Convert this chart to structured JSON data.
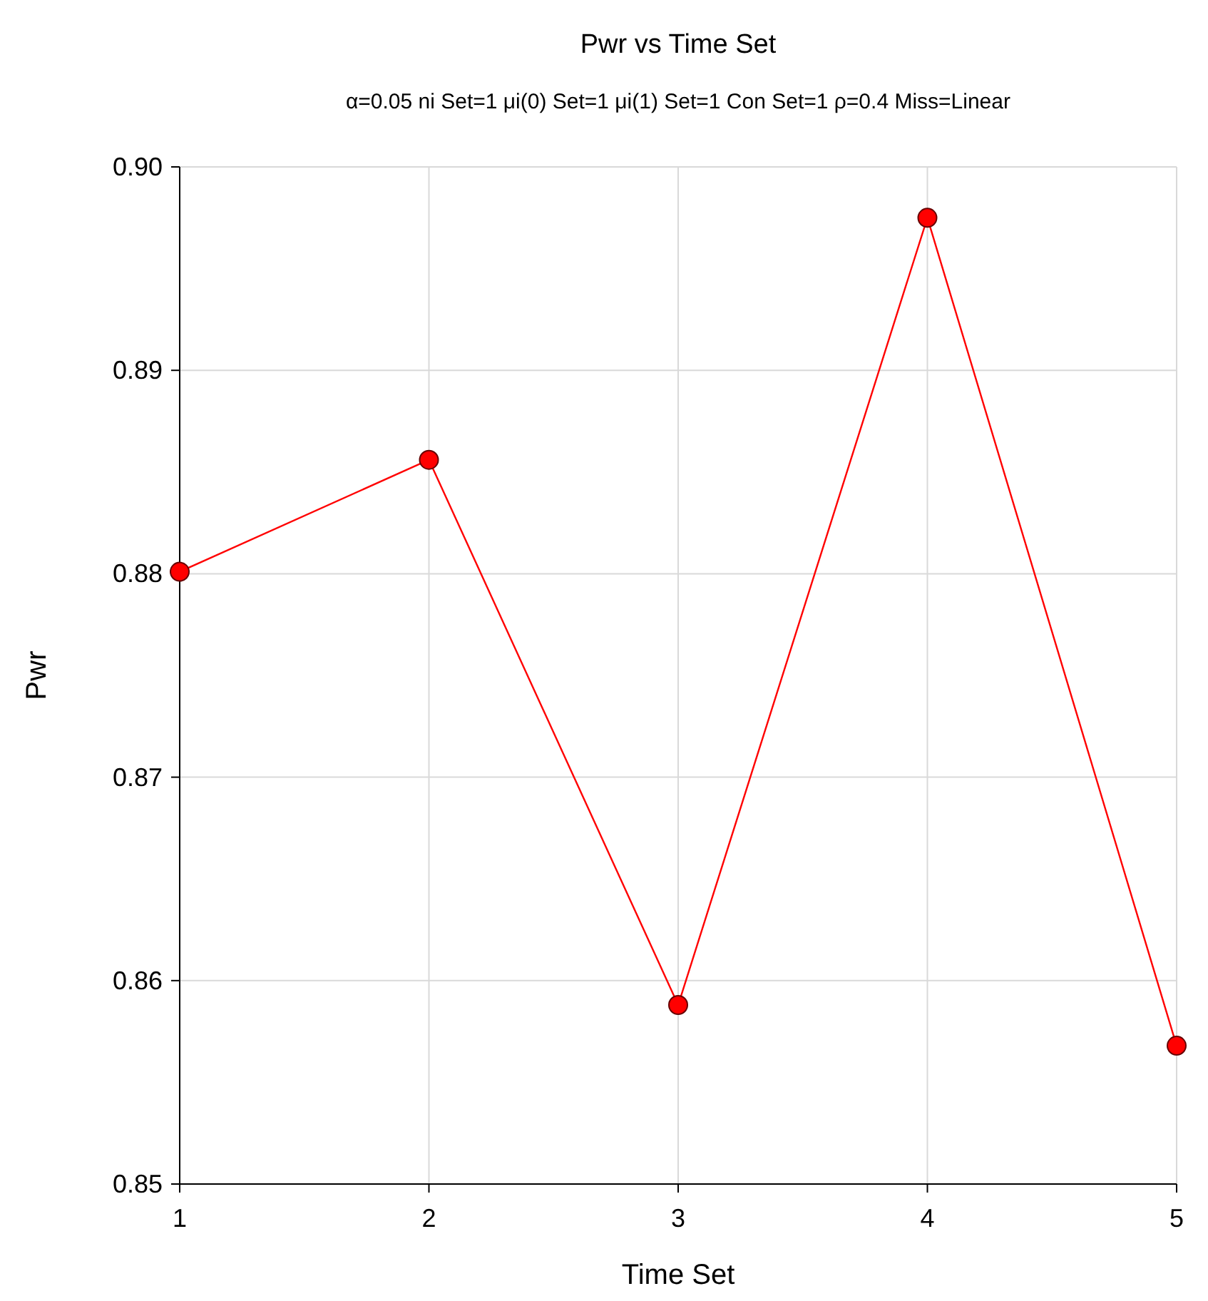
{
  "chart_data": {
    "type": "line",
    "title": "Pwr vs Time Set",
    "subtitle": "α=0.05 ni Set=1 μi(0) Set=1 μi(1) Set=1 Con Set=1 ρ=0.4 Miss=Linear",
    "xlabel": "Time Set",
    "ylabel": "Pwr",
    "x": [
      1,
      2,
      3,
      4,
      5
    ],
    "series": [
      {
        "color": "#ff0000",
        "values": [
          0.8801,
          0.8856,
          0.8588,
          0.8975,
          0.8568
        ]
      }
    ],
    "xlim": [
      1,
      5
    ],
    "xticks": [
      1,
      2,
      3,
      4,
      5
    ],
    "ylim": [
      0.85,
      0.9
    ],
    "yticks": [
      {
        "value": 0.85,
        "label": "0.85"
      },
      {
        "value": 0.86,
        "label": "0.86"
      },
      {
        "value": 0.87,
        "label": "0.87"
      },
      {
        "value": 0.88,
        "label": "0.88"
      },
      {
        "value": 0.89,
        "label": "0.89"
      },
      {
        "value": 0.9,
        "label": "0.90"
      }
    ],
    "grid": true,
    "marker": "circle",
    "line_style": "solid"
  }
}
